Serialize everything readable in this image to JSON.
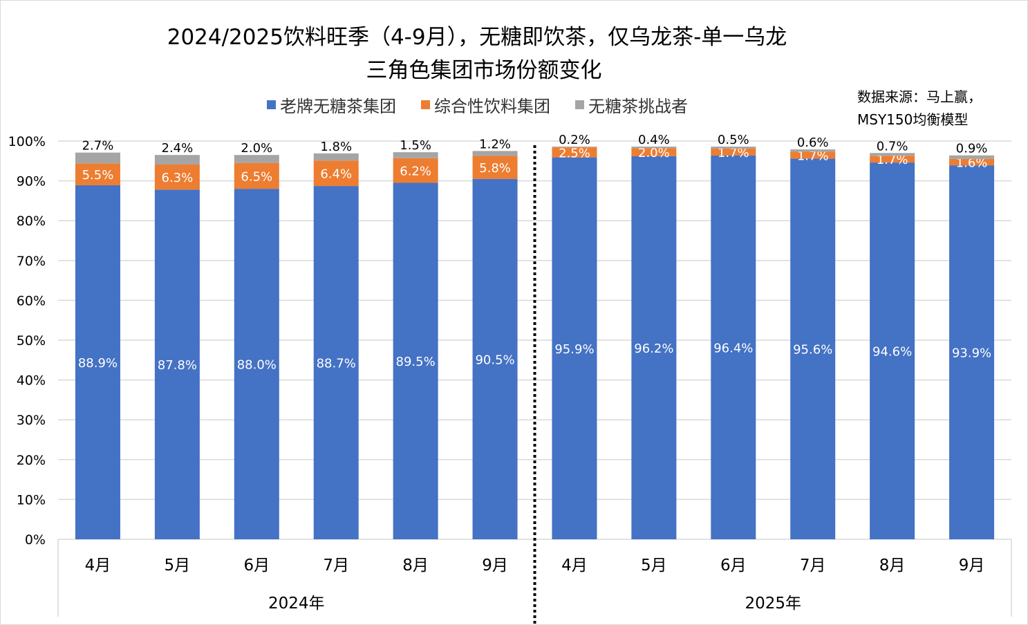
{
  "chart_data": {
    "type": "bar",
    "stacked": true,
    "title": "2024/2025饮料旺季（4-9月），无糖即饮茶，仅乌龙茶-单一乌龙",
    "subtitle": "三角色集团市场份额变化",
    "source": [
      "数据来源：马上赢，",
      "MSY150均衡模型"
    ],
    "categories": [
      "4月",
      "5月",
      "6月",
      "7月",
      "8月",
      "9月",
      "4月",
      "5月",
      "6月",
      "7月",
      "8月",
      "9月"
    ],
    "groups": [
      {
        "label": "2024年",
        "count": 6
      },
      {
        "label": "2025年",
        "count": 6
      }
    ],
    "series": [
      {
        "name": "老牌无糖茶集团",
        "color": "#4472C4",
        "values": [
          88.9,
          87.8,
          88.0,
          88.7,
          89.5,
          90.5,
          95.9,
          96.2,
          96.4,
          95.6,
          94.6,
          93.9
        ],
        "labels": [
          "88.9%",
          "87.8%",
          "88.0%",
          "88.7%",
          "89.5%",
          "90.5%",
          "95.9%",
          "96.2%",
          "96.4%",
          "95.6%",
          "94.6%",
          "93.9%"
        ]
      },
      {
        "name": "综合性饮料集团",
        "color": "#ED7D31",
        "values": [
          5.5,
          6.3,
          6.5,
          6.4,
          6.2,
          5.8,
          2.5,
          2.0,
          1.7,
          1.7,
          1.7,
          1.6
        ],
        "labels": [
          "5.5%",
          "6.3%",
          "6.5%",
          "6.4%",
          "6.2%",
          "5.8%",
          "2.5%",
          "2.0%",
          "1.7%",
          "1.7%",
          "1.7%",
          "1.6%"
        ]
      },
      {
        "name": "无糖茶挑战者",
        "color": "#A5A5A5",
        "values": [
          2.7,
          2.4,
          2.0,
          1.8,
          1.5,
          1.2,
          0.2,
          0.4,
          0.5,
          0.6,
          0.7,
          0.9
        ],
        "labels": [
          "2.7%",
          "2.4%",
          "2.0%",
          "1.8%",
          "1.5%",
          "1.2%",
          "0.2%",
          "0.4%",
          "0.5%",
          "0.6%",
          "0.7%",
          "0.9%"
        ]
      }
    ],
    "ylim": [
      0,
      100
    ],
    "yticks": [
      "0%",
      "10%",
      "20%",
      "30%",
      "40%",
      "50%",
      "60%",
      "70%",
      "80%",
      "90%",
      "100%"
    ],
    "grid": true,
    "legend_position": "top"
  }
}
